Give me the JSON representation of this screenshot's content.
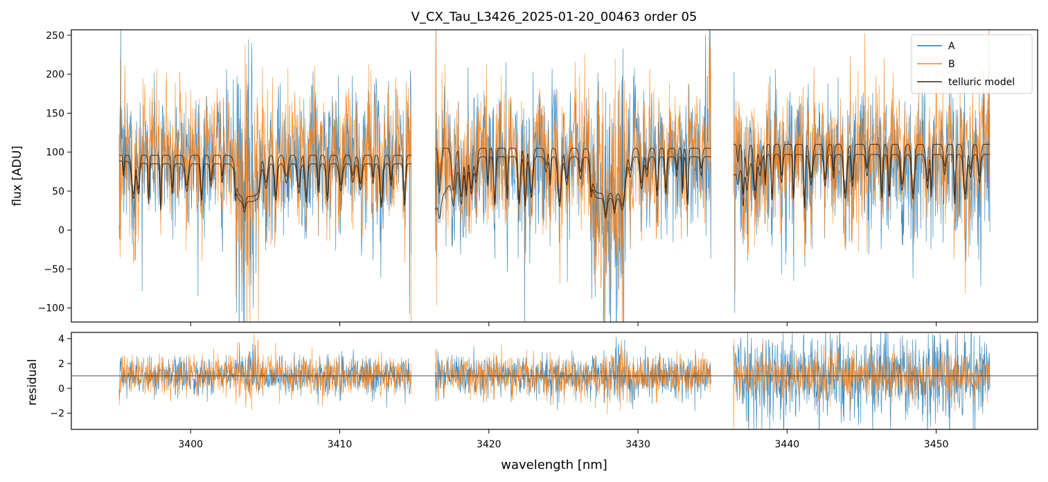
{
  "chart_data": [
    {
      "type": "line",
      "panel": "top",
      "title": "V_CX_Tau_L3426_2025-01-20_00463  order 05",
      "xlabel": "",
      "ylabel": "flux [ADU]",
      "xlim": [
        3392.0,
        3456.8
      ],
      "ylim": [
        -118,
        257
      ],
      "yticks": [
        "250",
        "200",
        "150",
        "100",
        "50",
        "0",
        "−50",
        "−100"
      ],
      "ytick_values": [
        250,
        200,
        150,
        100,
        50,
        0,
        -50,
        -100
      ],
      "xtick_values": [
        3400,
        3410,
        3420,
        3430,
        3440,
        3450
      ],
      "segments": [
        [
          3395.2,
          3414.8
        ],
        [
          3416.4,
          3434.9
        ],
        [
          3436.4,
          3453.6
        ]
      ],
      "legend": [
        "A",
        "B",
        "telluric model"
      ],
      "legend_position": "upper right",
      "series": [
        {
          "name": "A",
          "color": "#1f77b4",
          "description": "noisy flux, mean ~100, std ~45"
        },
        {
          "name": "B",
          "color": "#ff7f0e",
          "description": "noisy flux, mean ~105, std ~45"
        },
        {
          "name": "telluric model (upper)",
          "color": "#3a2a1a",
          "continuum": [
            96,
            105,
            110
          ],
          "absorption_bands": [
            [
              3403.0,
              3404.6
            ],
            [
              3426.9,
              3429.2
            ]
          ]
        },
        {
          "name": "telluric model (lower)",
          "color": "#3a2a1a",
          "continuum": [
            88,
            97,
            100
          ],
          "segment_start_values": [
            92,
            29,
            73
          ]
        }
      ]
    },
    {
      "type": "line",
      "panel": "bottom",
      "title": "",
      "xlabel": "wavelength [nm]",
      "ylabel": "residual",
      "xlim": [
        3392.0,
        3456.8
      ],
      "ylim": [
        -3.3,
        4.5
      ],
      "xticks": [
        "3400",
        "3410",
        "3420",
        "3430",
        "3440",
        "3450"
      ],
      "xtick_values": [
        3400,
        3410,
        3420,
        3430,
        3440,
        3450
      ],
      "yticks": [
        "4",
        "2",
        "0",
        "−2"
      ],
      "ytick_values": [
        4,
        2,
        0,
        -2
      ],
      "reference_line": 1.0,
      "series": [
        {
          "name": "A",
          "color": "#1f77b4",
          "description": "residual around 1, std ~0.8 (wider in last segment)"
        },
        {
          "name": "B",
          "color": "#ff7f0e",
          "description": "residual around 1, std ~0.8"
        }
      ]
    }
  ]
}
